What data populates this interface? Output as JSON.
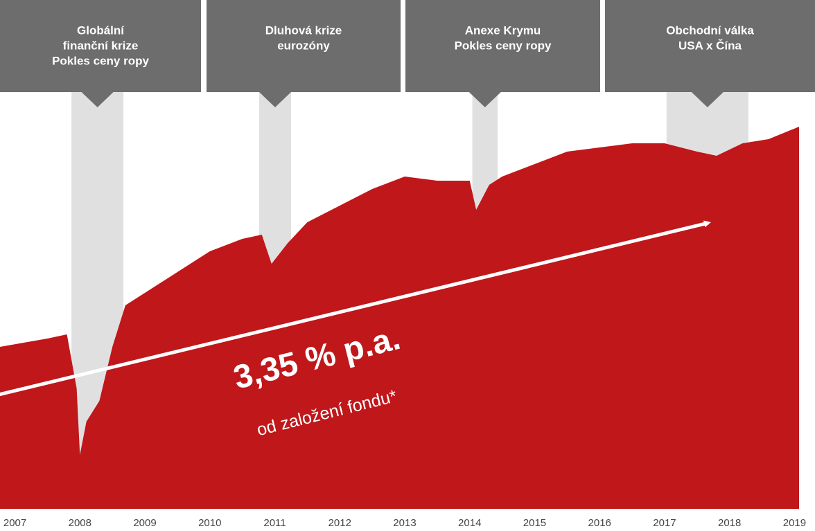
{
  "chart_data": {
    "type": "area",
    "color": "#c0171a",
    "x": [
      2006.77,
      2007.5,
      2007.8,
      2007.95,
      2008.0,
      2008.1,
      2008.3,
      2008.5,
      2008.7,
      2009.0,
      2009.5,
      2010.0,
      2010.5,
      2010.8,
      2010.95,
      2011.2,
      2011.5,
      2012.0,
      2012.5,
      2013.0,
      2013.5,
      2014.0,
      2014.1,
      2014.3,
      2014.5,
      2015.0,
      2015.5,
      2016.0,
      2016.5,
      2017.0,
      2017.5,
      2017.8,
      2018.2,
      2018.6,
      2019.07
    ],
    "values": [
      39,
      41,
      42,
      29,
      13,
      21,
      26,
      39,
      49,
      52,
      57,
      62,
      65,
      66,
      59,
      64,
      69,
      73,
      77,
      80,
      79,
      79,
      72,
      78,
      80,
      83,
      86,
      87,
      88,
      88,
      86,
      85,
      88,
      89,
      92
    ],
    "xlim": [
      2006.77,
      2019.07
    ],
    "ylim": [
      0,
      100
    ],
    "xticks": [
      2007,
      2008,
      2009,
      2010,
      2011,
      2012,
      2013,
      2014,
      2015,
      2016,
      2017,
      2018,
      2019
    ],
    "annotations": [
      {
        "text": [
          "Globální",
          "finanční krize",
          "Pokles ceny ropy"
        ],
        "span": [
          2007.87,
          2008.67
        ]
      },
      {
        "text": [
          "Dluhová krize",
          "eurozóny"
        ],
        "span": [
          2010.76,
          2011.25
        ]
      },
      {
        "text": [
          "Anexe Krymu",
          "Pokles ceny ropy"
        ],
        "span": [
          2014.04,
          2014.43
        ]
      },
      {
        "text": [
          "Obchodní válka",
          "USA x Čína"
        ],
        "span": [
          2017.03,
          2018.29
        ]
      }
    ],
    "trend_label": "3,35 % p.a.",
    "trend_sublabel": "od založení fondu*"
  }
}
